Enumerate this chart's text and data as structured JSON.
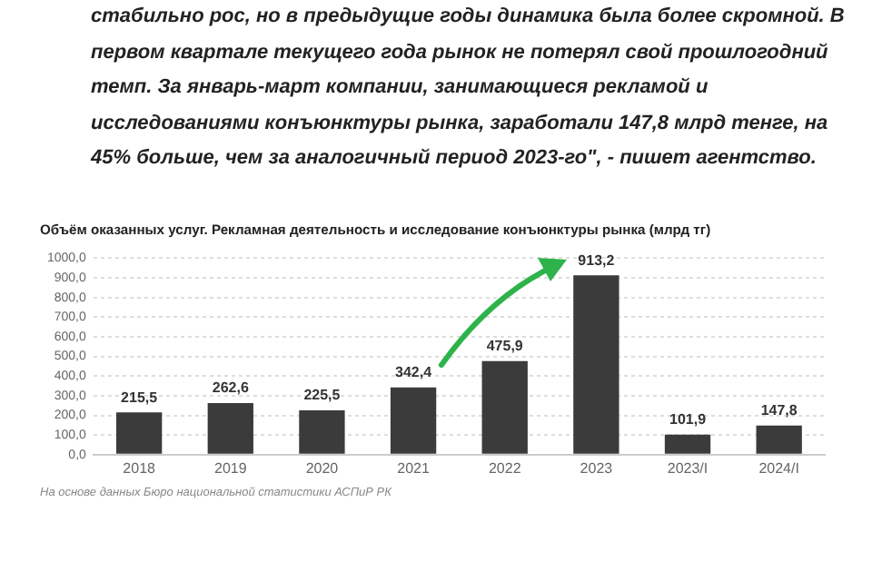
{
  "chart_data": {
    "type": "bar",
    "title": "Объём оказанных услуг. Рекламная деятельность и исследование конъюнктуры рынка (млрд тг)",
    "categories": [
      "2018",
      "2019",
      "2020",
      "2021",
      "2022",
      "2023",
      "2023/I",
      "2024/I"
    ],
    "values": [
      215.5,
      262.6,
      225.5,
      342.4,
      475.9,
      913.2,
      101.9,
      147.8
    ],
    "value_labels": [
      "215,5",
      "262,6",
      "225,5",
      "342,4",
      "475,9",
      "913,2",
      "101,9",
      "147,8"
    ],
    "color": "#3b3b3b",
    "ylim": [
      0,
      1000
    ],
    "yticks": [
      {
        "value": 0,
        "label": "0,0"
      },
      {
        "value": 100,
        "label": "100,0"
      },
      {
        "value": 200,
        "label": "200,0"
      },
      {
        "value": 300,
        "label": "300,0"
      },
      {
        "value": 400,
        "label": "400,0"
      },
      {
        "value": 500,
        "label": "500,0"
      },
      {
        "value": 600,
        "label": "600,0"
      },
      {
        "value": 700,
        "label": "700,0"
      },
      {
        "value": 800,
        "label": "800,0"
      },
      {
        "value": 900,
        "label": "900,0"
      },
      {
        "value": 1000,
        "label": "1000,0"
      }
    ],
    "grid": "y",
    "annotations": [
      "стабильно рос, но в предыдущие годы динамика была более скромной. В первом квартале текущего года рынок не потерял свой прошлогодний темп. За январь-март компании, занимающиеся рекламой и исследованиями конъюнктуры рынка, заработали 147,8 млрд тенге, на 45% больше, чем за аналогичный период 2023-го\", - пишет агентство.",
      "На основе данных Бюро национальной статистики АСПиР РК"
    ]
  }
}
